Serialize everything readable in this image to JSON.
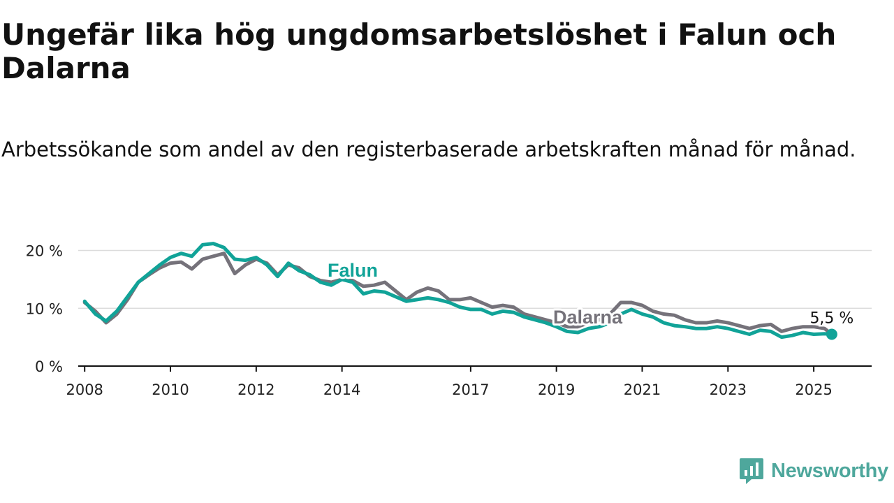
{
  "title": "Ungefär lika hög ungdomsarbetslöshet i Falun och Dalarna",
  "subtitle": "Arbetssökande som andel av den registerbaserade arbetskraften månad för månad.",
  "brand": {
    "name": "Newsworthy",
    "icon": "newsworthy-logo-icon"
  },
  "chart_data": {
    "type": "line",
    "ylim": [
      0,
      22
    ],
    "xlim": [
      2007.85,
      2026.35
    ],
    "y_ticks": [
      0,
      10,
      20
    ],
    "y_tick_labels": [
      "0 %",
      "10 %",
      "20 %"
    ],
    "x_ticks": [
      2008,
      2010,
      2012,
      2014,
      2017,
      2019,
      2021,
      2023,
      2025
    ],
    "x_tick_labels": [
      "2008",
      "2010",
      "2012",
      "2014",
      "2017",
      "2019",
      "2021",
      "2023",
      "2025"
    ],
    "grid": true,
    "end_label": "5,5 %",
    "series": [
      {
        "name": "Falun",
        "color": "#11a398",
        "x": [
          2008.0,
          2008.25,
          2008.5,
          2008.75,
          2009.0,
          2009.25,
          2009.5,
          2009.75,
          2010.0,
          2010.25,
          2010.5,
          2010.75,
          2011.0,
          2011.25,
          2011.5,
          2011.75,
          2012.0,
          2012.25,
          2012.5,
          2012.75,
          2013.0,
          2013.25,
          2013.5,
          2013.75,
          2014.0,
          2014.25,
          2014.5,
          2014.75,
          2015.0,
          2015.25,
          2015.5,
          2015.75,
          2016.0,
          2016.25,
          2016.5,
          2016.75,
          2017.0,
          2017.25,
          2017.5,
          2017.75,
          2018.0,
          2018.25,
          2018.5,
          2018.75,
          2019.0,
          2019.25,
          2019.5,
          2019.75,
          2020.0,
          2020.25,
          2020.5,
          2020.75,
          2021.0,
          2021.25,
          2021.5,
          2021.75,
          2022.0,
          2022.25,
          2022.5,
          2022.75,
          2023.0,
          2023.25,
          2023.5,
          2023.75,
          2024.0,
          2024.25,
          2024.5,
          2024.75,
          2025.0,
          2025.25,
          2025.42
        ],
        "values": [
          11.2,
          9.0,
          7.8,
          9.5,
          12.0,
          14.5,
          16.0,
          17.5,
          18.8,
          19.5,
          19.0,
          21.0,
          21.2,
          20.5,
          18.5,
          18.3,
          18.8,
          17.5,
          15.5,
          17.8,
          16.5,
          15.8,
          14.5,
          14.0,
          15.0,
          14.5,
          12.5,
          13.0,
          12.8,
          12.0,
          11.2,
          11.5,
          11.8,
          11.5,
          11.0,
          10.2,
          9.8,
          9.8,
          9.0,
          9.5,
          9.3,
          8.5,
          8.0,
          7.5,
          6.8,
          6.0,
          5.8,
          6.5,
          6.8,
          7.5,
          9.0,
          9.8,
          9.0,
          8.5,
          7.5,
          7.0,
          6.8,
          6.5,
          6.5,
          6.8,
          6.5,
          6.0,
          5.5,
          6.2,
          6.0,
          5.0,
          5.3,
          5.8,
          5.5,
          5.6,
          5.5
        ]
      },
      {
        "name": "Dalarna",
        "color": "#75727a",
        "x": [
          2008.0,
          2008.25,
          2008.5,
          2008.75,
          2009.0,
          2009.25,
          2009.5,
          2009.75,
          2010.0,
          2010.25,
          2010.5,
          2010.75,
          2011.0,
          2011.25,
          2011.5,
          2011.75,
          2012.0,
          2012.25,
          2012.5,
          2012.75,
          2013.0,
          2013.25,
          2013.5,
          2013.75,
          2014.0,
          2014.25,
          2014.5,
          2014.75,
          2015.0,
          2015.25,
          2015.5,
          2015.75,
          2016.0,
          2016.25,
          2016.5,
          2016.75,
          2017.0,
          2017.25,
          2017.5,
          2017.75,
          2018.0,
          2018.25,
          2018.5,
          2018.75,
          2019.0,
          2019.25,
          2019.5,
          2019.75,
          2020.0,
          2020.25,
          2020.5,
          2020.75,
          2021.0,
          2021.25,
          2021.5,
          2021.75,
          2022.0,
          2022.25,
          2022.5,
          2022.75,
          2023.0,
          2023.25,
          2023.5,
          2023.75,
          2024.0,
          2024.25,
          2024.5,
          2024.75,
          2025.0,
          2025.25,
          2025.42
        ],
        "values": [
          11.0,
          9.5,
          7.5,
          9.0,
          11.5,
          14.5,
          15.8,
          17.0,
          17.8,
          18.0,
          16.8,
          18.5,
          19.0,
          19.5,
          16.0,
          17.5,
          18.5,
          17.8,
          15.8,
          17.5,
          17.0,
          15.5,
          14.8,
          14.5,
          15.0,
          14.8,
          13.8,
          14.0,
          14.5,
          13.0,
          11.5,
          12.8,
          13.5,
          13.0,
          11.5,
          11.5,
          11.8,
          11.0,
          10.2,
          10.5,
          10.2,
          9.0,
          8.5,
          8.0,
          7.5,
          6.8,
          6.8,
          7.5,
          8.0,
          9.0,
          11.0,
          11.0,
          10.5,
          9.5,
          9.0,
          8.8,
          8.0,
          7.5,
          7.5,
          7.8,
          7.5,
          7.0,
          6.5,
          7.0,
          7.2,
          6.0,
          6.5,
          6.8,
          6.8,
          6.5,
          5.5
        ]
      }
    ]
  }
}
